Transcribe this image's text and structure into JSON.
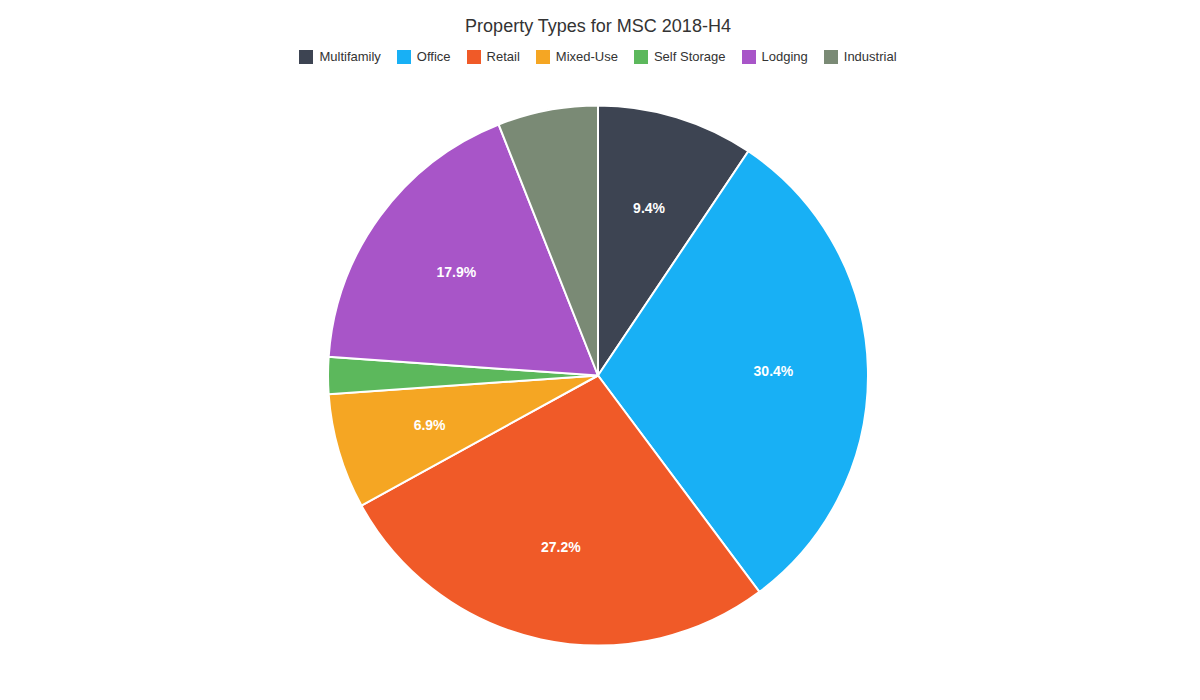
{
  "chart_data": {
    "type": "pie",
    "title": "Property Types for MSC 2018-H4",
    "categories": [
      "Multifamily",
      "Office",
      "Retail",
      "Mixed-Use",
      "Self Storage",
      "Lodging",
      "Industrial"
    ],
    "values": [
      9.4,
      30.4,
      27.2,
      6.9,
      2.2,
      17.9,
      6.0
    ],
    "value_labels": [
      "9.4%",
      "30.4%",
      "27.2%",
      "6.9%",
      null,
      "17.9%",
      null
    ],
    "data_labels": true,
    "colors": [
      "#3d4452",
      "#18b0f5",
      "#f05a28",
      "#f5a623",
      "#5cb85c",
      "#a855c8",
      "#7a8a75"
    ],
    "legend": "top"
  }
}
